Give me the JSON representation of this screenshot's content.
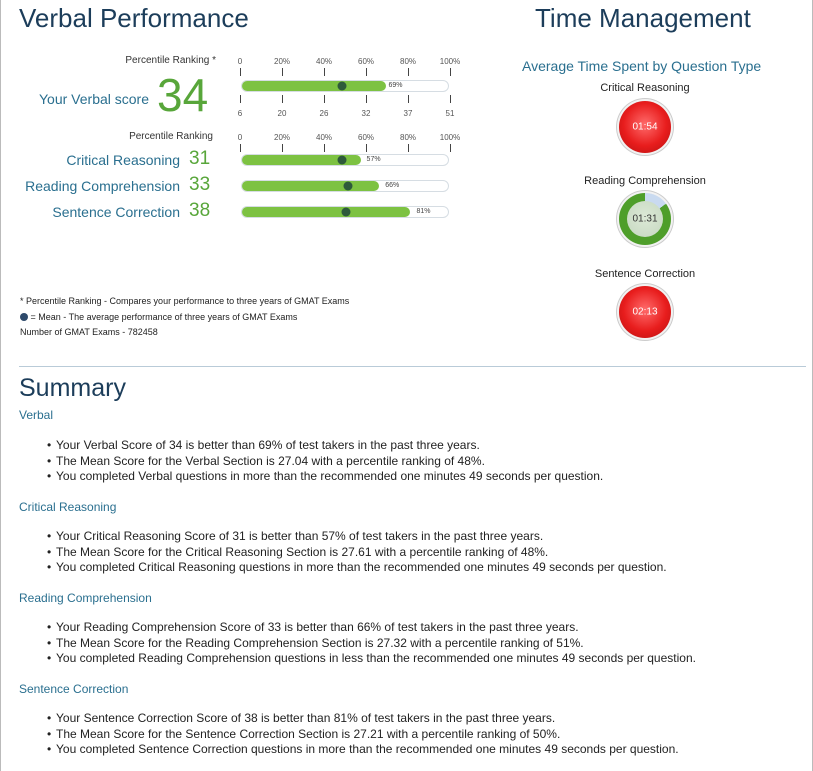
{
  "verbal": {
    "title": "Verbal Performance",
    "percentile_ranking_label": "Percentile Ranking *",
    "pct_ticks": [
      "0",
      "20%",
      "40%",
      "60%",
      "80%",
      "100%"
    ],
    "score_label": "Your Verbal score",
    "score": "34",
    "score_bar": {
      "percent": 69,
      "percent_label": "69%",
      "mean_percent": 48
    },
    "score_ticks": [
      "6",
      "20",
      "26",
      "32",
      "37",
      "51"
    ],
    "categories_header": "Percentile Ranking",
    "categories": [
      {
        "label": "Critical Reasoning",
        "score": "31",
        "percent": 57,
        "percent_label": "57%",
        "mean_percent": 48
      },
      {
        "label": "Reading Comprehension",
        "score": "33",
        "percent": 66,
        "percent_label": "66%",
        "mean_percent": 51
      },
      {
        "label": "Sentence Correction",
        "score": "38",
        "percent": 81,
        "percent_label": "81%",
        "mean_percent": 50
      }
    ]
  },
  "time_management": {
    "title": "Time Management",
    "subtitle": "Average Time Spent by Question Type",
    "items": [
      {
        "label": "Critical Reasoning",
        "time": "01:54",
        "status": "over",
        "color": "#e81d1d"
      },
      {
        "label": "Reading Comprehension",
        "time": "01:31",
        "status": "under",
        "color": "#4e9e2a"
      },
      {
        "label": "Sentence Correction",
        "time": "02:13",
        "status": "over",
        "color": "#e81d1d"
      }
    ]
  },
  "notes": {
    "percentile_note": "* Percentile Ranking - Compares your performance to three years of GMAT Exams",
    "mean_note": " = Mean - The average performance of three years of GMAT Exams",
    "exam_count": "Number of GMAT Exams - 782458"
  },
  "summary": {
    "title": "Summary",
    "sections": [
      {
        "title": "Verbal",
        "bullets": [
          "Your Verbal Score of 34 is better than 69% of test takers in the past three years.",
          "The Mean Score for the Verbal Section is 27.04 with a percentile ranking of 48%.",
          "You completed Verbal questions in more than the recommended one minutes 49 seconds per question."
        ]
      },
      {
        "title": "Critical Reasoning",
        "bullets": [
          "Your Critical Reasoning Score of 31 is better than 57% of test takers in the past three years.",
          "The Mean Score for the Critical Reasoning Section is 27.61 with a percentile ranking of 48%.",
          "You completed Critical Reasoning questions in more than the recommended one minutes 49 seconds per question."
        ]
      },
      {
        "title": "Reading Comprehension",
        "bullets": [
          "Your Reading Comprehension Score of 33 is better than 66% of test takers in the past three years.",
          "The Mean Score for the Reading Comprehension Section is 27.32 with a percentile ranking of 51%.",
          "You completed Reading Comprehension questions in less than the recommended one minutes 49 seconds per question."
        ]
      },
      {
        "title": "Sentence Correction",
        "bullets": [
          "Your Sentence Correction Score of 38 is better than 81% of test takers in the past three years.",
          "The Mean Score for the Sentence Correction Section is 27.21 with a percentile ranking of 50%.",
          "You completed Sentence Correction questions in more than the recommended one minutes 49 seconds per question."
        ]
      }
    ]
  },
  "colors": {
    "accent": "#2a6f8f",
    "title": "#1c3d5a",
    "score_green": "#58a63a",
    "bar_green": "#7dc242",
    "mean_dot": "#2e5a3b"
  }
}
